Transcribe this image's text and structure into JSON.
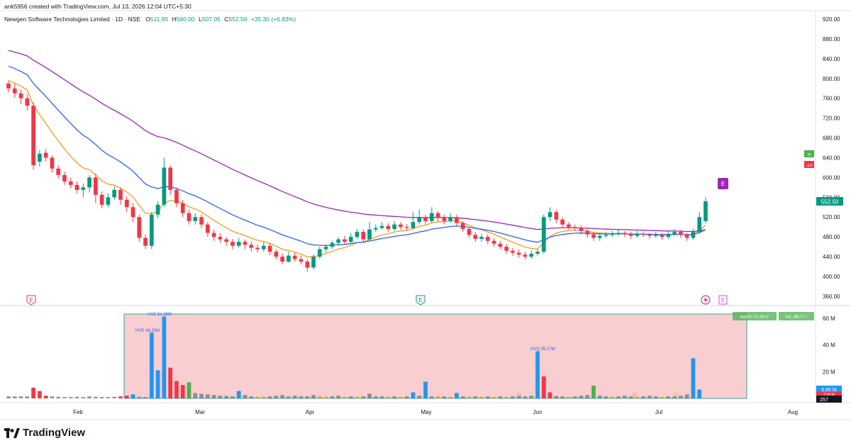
{
  "header": {
    "created_by": "ank5956 created with TradingView.com, Jul 13, 2026 12:04 UTC+5:30",
    "symbol": "Newgen Software Technologies Limited · 1D · NSE",
    "o_label": "O",
    "o_val": "511.95",
    "h_label": "H",
    "h_val": "560.00",
    "l_label": "L",
    "l_val": "507.05",
    "c_label": "C",
    "c_val": "552.50",
    "change": "+35.30 (+6.83%)"
  },
  "footer": {
    "brand": "TradingView"
  },
  "colors": {
    "up": "#089981",
    "down": "#f23645",
    "ema_fast": "#f59d1c",
    "ema_mid": "#2962ff",
    "ema_slow": "#9c27b0",
    "vol_blue": "#2196f3",
    "vol_gray": "#787b86",
    "vol_zone": "#f8c6c9"
  },
  "chart_data": {
    "type": "candlestick",
    "price_axis_ticks": [
      "920.00",
      "880.00",
      "840.00",
      "800.00",
      "760.00",
      "720.00",
      "680.00",
      "640.00",
      "600.00",
      "560.00",
      "520.00",
      "480.00",
      "440.00",
      "400.00",
      "360.00"
    ],
    "price_range": [
      340,
      940
    ],
    "last_price_label": "552.50",
    "side_badges": [
      "20",
      "-3.0"
    ],
    "x_labels": [
      "Feb",
      "Mar",
      "Apr",
      "May",
      "Jun",
      "Jul",
      "Aug"
    ],
    "earnings_markers": [
      "E",
      "E",
      "E",
      "E"
    ],
    "candles": [
      [
        790,
        780,
        795,
        772
      ],
      [
        780,
        770,
        790,
        762
      ],
      [
        770,
        760,
        778,
        748
      ],
      [
        760,
        745,
        768,
        735
      ],
      [
        745,
        625,
        752,
        615
      ],
      [
        632,
        648,
        655,
        622
      ],
      [
        650,
        640,
        658,
        632
      ],
      [
        640,
        618,
        645,
        610
      ],
      [
        618,
        605,
        625,
        598
      ],
      [
        605,
        592,
        612,
        585
      ],
      [
        592,
        585,
        600,
        578
      ],
      [
        585,
        575,
        592,
        568
      ],
      [
        575,
        580,
        588,
        560
      ],
      [
        580,
        600,
        605,
        570
      ],
      [
        600,
        565,
        608,
        548
      ],
      [
        565,
        545,
        572,
        538
      ],
      [
        545,
        560,
        568,
        540
      ],
      [
        560,
        575,
        582,
        555
      ],
      [
        575,
        555,
        580,
        545
      ],
      [
        555,
        540,
        562,
        530
      ],
      [
        540,
        520,
        548,
        510
      ],
      [
        520,
        478,
        525,
        470
      ],
      [
        478,
        462,
        485,
        455
      ],
      [
        462,
        525,
        530,
        455
      ],
      [
        525,
        545,
        552,
        518
      ],
      [
        545,
        620,
        640,
        540
      ],
      [
        620,
        575,
        625,
        565
      ],
      [
        575,
        548,
        580,
        540
      ],
      [
        548,
        528,
        555,
        520
      ],
      [
        528,
        512,
        535,
        505
      ],
      [
        512,
        520,
        528,
        505
      ],
      [
        520,
        505,
        525,
        498
      ],
      [
        505,
        488,
        510,
        480
      ],
      [
        488,
        480,
        495,
        472
      ],
      [
        480,
        475,
        488,
        468
      ],
      [
        475,
        470,
        480,
        462
      ],
      [
        470,
        462,
        476,
        455
      ],
      [
        462,
        470,
        478,
        458
      ],
      [
        470,
        464,
        475,
        455
      ],
      [
        464,
        458,
        470,
        450
      ],
      [
        458,
        455,
        465,
        448
      ],
      [
        455,
        462,
        470,
        450
      ],
      [
        462,
        450,
        468,
        443
      ],
      [
        450,
        440,
        455,
        435
      ],
      [
        440,
        430,
        446,
        425
      ],
      [
        430,
        442,
        450,
        428
      ],
      [
        442,
        435,
        448,
        430
      ],
      [
        435,
        430,
        442,
        424
      ],
      [
        430,
        418,
        435,
        410
      ],
      [
        418,
        440,
        445,
        414
      ],
      [
        440,
        455,
        460,
        436
      ],
      [
        455,
        460,
        465,
        448
      ],
      [
        460,
        468,
        472,
        455
      ],
      [
        468,
        475,
        480,
        462
      ],
      [
        475,
        470,
        482,
        465
      ],
      [
        470,
        480,
        488,
        466
      ],
      [
        480,
        490,
        496,
        475
      ],
      [
        490,
        475,
        495,
        470
      ],
      [
        475,
        495,
        510,
        472
      ],
      [
        495,
        498,
        505,
        490
      ],
      [
        498,
        502,
        510,
        495
      ],
      [
        502,
        496,
        508,
        490
      ],
      [
        496,
        505,
        512,
        492
      ],
      [
        505,
        500,
        510,
        495
      ],
      [
        500,
        498,
        506,
        492
      ],
      [
        498,
        510,
        530,
        495
      ],
      [
        510,
        520,
        535,
        505
      ],
      [
        520,
        512,
        525,
        505
      ],
      [
        512,
        528,
        540,
        508
      ],
      [
        528,
        518,
        532,
        510
      ],
      [
        518,
        512,
        525,
        505
      ],
      [
        512,
        520,
        528,
        508
      ],
      [
        520,
        508,
        525,
        502
      ],
      [
        508,
        496,
        512,
        490
      ],
      [
        496,
        484,
        500,
        478
      ],
      [
        484,
        476,
        490,
        470
      ],
      [
        476,
        480,
        486,
        470
      ],
      [
        480,
        472,
        485,
        465
      ],
      [
        472,
        466,
        478,
        460
      ],
      [
        466,
        460,
        472,
        455
      ],
      [
        460,
        452,
        466,
        446
      ],
      [
        452,
        448,
        458,
        442
      ],
      [
        448,
        444,
        455,
        438
      ],
      [
        444,
        440,
        450,
        434
      ],
      [
        440,
        446,
        452,
        436
      ],
      [
        446,
        450,
        456,
        442
      ],
      [
        450,
        520,
        525,
        446
      ],
      [
        520,
        530,
        540,
        512
      ],
      [
        530,
        515,
        535,
        508
      ],
      [
        515,
        505,
        520,
        500
      ],
      [
        505,
        500,
        510,
        495
      ],
      [
        500,
        498,
        505,
        492
      ],
      [
        498,
        492,
        503,
        485
      ],
      [
        492,
        485,
        498,
        478
      ],
      [
        485,
        478,
        490,
        472
      ],
      [
        478,
        482,
        488,
        472
      ],
      [
        482,
        484,
        490,
        478
      ],
      [
        484,
        486,
        492,
        480
      ],
      [
        486,
        488,
        494,
        482
      ],
      [
        488,
        485,
        492,
        480
      ],
      [
        485,
        482,
        490,
        476
      ],
      [
        482,
        486,
        492,
        478
      ],
      [
        486,
        484,
        490,
        480
      ],
      [
        484,
        482,
        488,
        476
      ],
      [
        482,
        484,
        490,
        478
      ],
      [
        484,
        480,
        488,
        474
      ],
      [
        480,
        486,
        492,
        476
      ],
      [
        486,
        490,
        496,
        482
      ],
      [
        490,
        484,
        494,
        478
      ],
      [
        484,
        478,
        488,
        472
      ],
      [
        478,
        490,
        496,
        474
      ],
      [
        490,
        520,
        530,
        486
      ],
      [
        512,
        552,
        560,
        507
      ]
    ],
    "volumes": [
      {
        "v": 1.5,
        "c": "gray"
      },
      {
        "v": 1.5,
        "c": "gray"
      },
      {
        "v": 1.5,
        "c": "gray"
      },
      {
        "v": 1.5,
        "c": "gray"
      },
      {
        "v": 8.0,
        "c": "red"
      },
      {
        "v": 5.5,
        "c": "red"
      },
      {
        "v": 2.0,
        "c": "red"
      },
      {
        "v": 1.5,
        "c": "gray"
      },
      {
        "v": 1.2,
        "c": "gray"
      },
      {
        "v": 1.0,
        "c": "gray"
      },
      {
        "v": 1.0,
        "c": "gray"
      },
      {
        "v": 1.2,
        "c": "gray"
      },
      {
        "v": 1.0,
        "c": "gray"
      },
      {
        "v": 1.5,
        "c": "gray"
      },
      {
        "v": 1.2,
        "c": "gray"
      },
      {
        "v": 1.0,
        "c": "gray"
      },
      {
        "v": 1.0,
        "c": "gray"
      },
      {
        "v": 1.2,
        "c": "gray"
      },
      {
        "v": 1.5,
        "c": "red"
      },
      {
        "v": 2.0,
        "c": "red"
      },
      {
        "v": 3.0,
        "c": "blue"
      },
      {
        "v": 1.2,
        "c": "gray"
      },
      {
        "v": 1.0,
        "c": "gray"
      },
      {
        "v": 49.25,
        "c": "blue"
      },
      {
        "v": 21.0,
        "c": "blue"
      },
      {
        "v": 61.38,
        "c": "blue"
      },
      {
        "v": 23.0,
        "c": "red"
      },
      {
        "v": 13.0,
        "c": "red"
      },
      {
        "v": 10.0,
        "c": "red"
      },
      {
        "v": 12.0,
        "c": "green"
      },
      {
        "v": 4.0,
        "c": "gray"
      },
      {
        "v": 3.5,
        "c": "gray"
      },
      {
        "v": 3.0,
        "c": "gray"
      },
      {
        "v": 2.5,
        "c": "gray"
      },
      {
        "v": 2.0,
        "c": "gray"
      },
      {
        "v": 1.8,
        "c": "gray"
      },
      {
        "v": 1.5,
        "c": "gray"
      },
      {
        "v": 5.5,
        "c": "blue"
      },
      {
        "v": 2.5,
        "c": "gray"
      },
      {
        "v": 1.5,
        "c": "gray"
      },
      {
        "v": 1.2,
        "c": "orange"
      },
      {
        "v": 1.2,
        "c": "orange"
      },
      {
        "v": 1.5,
        "c": "gray"
      },
      {
        "v": 2.0,
        "c": "gray"
      },
      {
        "v": 2.5,
        "c": "gray"
      },
      {
        "v": 1.5,
        "c": "gray"
      },
      {
        "v": 2.0,
        "c": "gray"
      },
      {
        "v": 1.5,
        "c": "gray"
      },
      {
        "v": 1.5,
        "c": "gray"
      },
      {
        "v": 2.5,
        "c": "gray"
      },
      {
        "v": 1.5,
        "c": "orange"
      },
      {
        "v": 1.2,
        "c": "orange"
      },
      {
        "v": 1.5,
        "c": "gray"
      },
      {
        "v": 2.0,
        "c": "gray"
      },
      {
        "v": 1.2,
        "c": "orange"
      },
      {
        "v": 1.5,
        "c": "gray"
      },
      {
        "v": 1.2,
        "c": "orange"
      },
      {
        "v": 1.5,
        "c": "gray"
      },
      {
        "v": 3.5,
        "c": "gray"
      },
      {
        "v": 1.5,
        "c": "gray"
      },
      {
        "v": 1.5,
        "c": "gray"
      },
      {
        "v": 1.2,
        "c": "orange"
      },
      {
        "v": 1.5,
        "c": "gray"
      },
      {
        "v": 1.2,
        "c": "orange"
      },
      {
        "v": 1.5,
        "c": "gray"
      },
      {
        "v": 4.5,
        "c": "blue"
      },
      {
        "v": 2.0,
        "c": "gray"
      },
      {
        "v": 12.5,
        "c": "blue"
      },
      {
        "v": 1.5,
        "c": "gray"
      },
      {
        "v": 1.5,
        "c": "orange"
      },
      {
        "v": 1.5,
        "c": "gray"
      },
      {
        "v": 1.2,
        "c": "orange"
      },
      {
        "v": 4.0,
        "c": "blue"
      },
      {
        "v": 1.5,
        "c": "gray"
      },
      {
        "v": 1.2,
        "c": "orange"
      },
      {
        "v": 1.5,
        "c": "gray"
      },
      {
        "v": 1.2,
        "c": "orange"
      },
      {
        "v": 1.5,
        "c": "gray"
      },
      {
        "v": 1.2,
        "c": "orange"
      },
      {
        "v": 1.5,
        "c": "gray"
      },
      {
        "v": 1.2,
        "c": "orange"
      },
      {
        "v": 1.5,
        "c": "gray"
      },
      {
        "v": 2.0,
        "c": "gray"
      },
      {
        "v": 1.5,
        "c": "gray"
      },
      {
        "v": 2.0,
        "c": "gray"
      },
      {
        "v": 35.27,
        "c": "blue"
      },
      {
        "v": 16.5,
        "c": "red"
      },
      {
        "v": 4.5,
        "c": "red"
      },
      {
        "v": 1.8,
        "c": "gray"
      },
      {
        "v": 1.5,
        "c": "gray"
      },
      {
        "v": 1.2,
        "c": "orange"
      },
      {
        "v": 1.5,
        "c": "gray"
      },
      {
        "v": 2.0,
        "c": "gray"
      },
      {
        "v": 2.5,
        "c": "gray"
      },
      {
        "v": 9.5,
        "c": "green"
      },
      {
        "v": 2.0,
        "c": "gray"
      },
      {
        "v": 1.5,
        "c": "gray"
      },
      {
        "v": 1.2,
        "c": "orange"
      },
      {
        "v": 1.5,
        "c": "gray"
      },
      {
        "v": 2.0,
        "c": "gray"
      },
      {
        "v": 1.5,
        "c": "gray"
      },
      {
        "v": 1.2,
        "c": "orange"
      },
      {
        "v": 1.5,
        "c": "gray"
      },
      {
        "v": 2.0,
        "c": "gray"
      },
      {
        "v": 1.5,
        "c": "gray"
      },
      {
        "v": 1.2,
        "c": "orange"
      },
      {
        "v": 1.5,
        "c": "gray"
      },
      {
        "v": 1.5,
        "c": "gray"
      },
      {
        "v": 2.0,
        "c": "gray"
      },
      {
        "v": 3.0,
        "c": "gray"
      },
      {
        "v": 30.0,
        "c": "blue"
      },
      {
        "v": 6.66,
        "c": "blue"
      }
    ],
    "volume_axis_ticks": [
      "60 M",
      "40 M",
      "20 M"
    ],
    "volume_range": [
      0,
      64
    ],
    "volume_annotations": {
      "hve1": "HVE 61.38M",
      "hve2": "HVE 49.25M",
      "hvq": "HVQ 35.27M",
      "q_markers": [
        "Q",
        "Q",
        "Q"
      ]
    },
    "volume_badges": {
      "avg": "AvgVol: 141.96 Cr",
      "ind": "Ind.: 385.27 L",
      "vol_last": "6.66 M",
      "vol_red": "3.98 M",
      "vol_dark": "257"
    }
  }
}
